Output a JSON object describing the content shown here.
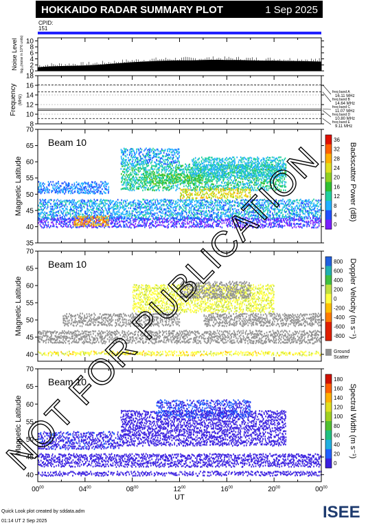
{
  "header": {
    "title": "HOKKAIDO RADAR SUMMARY PLOT",
    "date": "1 Sep 2025"
  },
  "cpid": {
    "label": "CPID:",
    "value": "151"
  },
  "watermark": "NOT FOR PUBLICATION",
  "footer": {
    "line1": "Quick Look plot created by sddata.adm",
    "line2": "01:14 UT  2 Sep 2025",
    "logo": "ISEE"
  },
  "colors": {
    "cpid_bar": "#2020ff",
    "velocity_pos": "#2020c0",
    "velocity_neg": "#e04000",
    "ground_scatter": "#909090",
    "width_main": "#3a20e0"
  },
  "chart_data": [
    {
      "id": "noise",
      "type": "area",
      "ylabel": "Noise Level",
      "ylabel_sub": "log₁₀(noise in 10^6 units)",
      "yticks": [
        "0",
        "2",
        "4",
        "6",
        "8",
        "10"
      ],
      "ylim": [
        0,
        11
      ],
      "xlim": [
        0,
        24
      ],
      "x": [
        0,
        1,
        2,
        3,
        4,
        5,
        6,
        7,
        8,
        9,
        10,
        11,
        12,
        13,
        14,
        15,
        16,
        17,
        18,
        19,
        20,
        21,
        22,
        23,
        24
      ],
      "values": [
        1.2,
        1.5,
        1.6,
        1.7,
        1.8,
        2.0,
        2.3,
        2.6,
        2.9,
        3.1,
        3.3,
        3.4,
        3.5,
        3.5,
        3.6,
        3.7,
        3.6,
        3.6,
        3.5,
        3.4,
        3.4,
        3.3,
        3.3,
        3.2,
        3.1
      ]
    },
    {
      "id": "frequency",
      "type": "line",
      "ylabel": "Frequency",
      "ylabel_sub": "(MHz)",
      "yticks": [
        "8",
        "10",
        "12",
        "14",
        "16",
        "18"
      ],
      "ylim": [
        8,
        18
      ],
      "xlim": [
        0,
        24
      ],
      "series": [
        {
          "name": "freq band A",
          "freq_label": "16.11 MHz",
          "value": 16.11
        },
        {
          "name": "freq band B",
          "freq_label": "14.64 MHz",
          "value": 14.64
        },
        {
          "name": "freq band C",
          "freq_label": "11.07 MHz",
          "value": 11.07
        },
        {
          "name": "freq band D",
          "freq_label": "10.80 MHz",
          "value": 10.8
        },
        {
          "name": "freq band E",
          "freq_label": "9.11 MHz",
          "value": 9.11
        }
      ]
    },
    {
      "id": "power",
      "type": "heatmap",
      "title": "Beam 10",
      "ylabel": "Magnetic Latitude",
      "ylim": [
        35,
        70
      ],
      "xlim": [
        0,
        24
      ],
      "yticks": [
        "35",
        "40",
        "45",
        "50",
        "55",
        "60",
        "65",
        "70"
      ],
      "colorbar_label": "Backscatter Power (dB)",
      "colorbar_ticks": [
        "0",
        "4",
        "8",
        "12",
        "16",
        "20",
        "24",
        "28",
        "32",
        "36"
      ],
      "colorbar_range": [
        0,
        40
      ],
      "bands": [
        {
          "x0": 0,
          "x1": 24,
          "lat0": 42.0,
          "lat1": 48.0,
          "value": 10
        },
        {
          "x0": 0,
          "x1": 24,
          "lat0": 39.5,
          "lat1": 42.5,
          "value": 4
        },
        {
          "x0": 3,
          "x1": 6,
          "lat0": 40.0,
          "lat1": 43.0,
          "value": 30
        },
        {
          "x0": 7,
          "x1": 21,
          "lat0": 51.0,
          "lat1": 59.0,
          "value": 14
        },
        {
          "x0": 12,
          "x1": 18,
          "lat0": 48.5,
          "lat1": 51.5,
          "value": 26
        },
        {
          "x0": 9,
          "x1": 14,
          "lat0": 53.0,
          "lat1": 56.0,
          "value": 18
        },
        {
          "x0": 0,
          "x1": 6,
          "lat0": 50.0,
          "lat1": 54.0,
          "value": 8
        },
        {
          "x0": 13,
          "x1": 21,
          "lat0": 55.0,
          "lat1": 61.0,
          "value": 12
        },
        {
          "x0": 7,
          "x1": 12,
          "lat0": 59.0,
          "lat1": 64.0,
          "value": 10
        }
      ]
    },
    {
      "id": "velocity",
      "type": "heatmap",
      "title": "Beam 10",
      "ylabel": "Magnetic Latitude",
      "ylim": [
        38,
        70
      ],
      "xlim": [
        0,
        24
      ],
      "yticks": [
        "40",
        "45",
        "50",
        "55",
        "60",
        "65",
        "70"
      ],
      "colorbar_label": "Doppler Velocity (m s⁻¹)",
      "colorbar_ticks": [
        "800",
        "600",
        "400",
        "200",
        "0",
        "-200",
        "-400",
        "-600",
        "-800"
      ],
      "colorbar_range": [
        -800,
        800
      ],
      "ground_scatter_label": "Ground Scatter",
      "bands": [
        {
          "x0": 0,
          "x1": 24,
          "lat0": 43.0,
          "lat1": 47.0,
          "value": "gs"
        },
        {
          "x0": 0,
          "x1": 24,
          "lat0": 39.5,
          "lat1": 41.0,
          "value": -100
        },
        {
          "x0": 2,
          "x1": 12,
          "lat0": 48.0,
          "lat1": 52.0,
          "value": "gs"
        },
        {
          "x0": 14,
          "x1": 24,
          "lat0": 48.0,
          "lat1": 51.5,
          "value": "gs"
        },
        {
          "x0": 8,
          "x1": 20,
          "lat0": 52.0,
          "lat1": 60.0,
          "value": -50
        },
        {
          "x0": 12,
          "x1": 18,
          "lat0": 56.0,
          "lat1": 61.0,
          "value": "gs"
        }
      ]
    },
    {
      "id": "width",
      "type": "heatmap",
      "title": "Beam 10",
      "ylabel": "Magnetic Latitude",
      "ylim": [
        38,
        70
      ],
      "xlim": [
        0,
        24
      ],
      "yticks": [
        "40",
        "45",
        "50",
        "55",
        "60",
        "65",
        "70"
      ],
      "colorbar_label": "Spectral Width (m s⁻¹)",
      "colorbar_ticks": [
        "0",
        "20",
        "40",
        "60",
        "80",
        "100",
        "120",
        "140",
        "160",
        "180"
      ],
      "colorbar_range": [
        0,
        200
      ],
      "bands": [
        {
          "x0": 0,
          "x1": 24,
          "lat0": 42.0,
          "lat1": 46.0,
          "value": 10
        },
        {
          "x0": 0,
          "x1": 24,
          "lat0": 39.5,
          "lat1": 41.0,
          "value": 10
        },
        {
          "x0": 0,
          "x1": 7,
          "lat0": 47.0,
          "lat1": 52.0,
          "value": 15
        },
        {
          "x0": 7,
          "x1": 21,
          "lat0": 48.0,
          "lat1": 58.0,
          "value": 12
        },
        {
          "x0": 10,
          "x1": 18,
          "lat0": 56.0,
          "lat1": 61.0,
          "value": 20
        }
      ]
    }
  ],
  "xaxis": {
    "label": "UT",
    "ticks": [
      {
        "main": "00",
        "sup": "00"
      },
      {
        "main": "04",
        "sup": "00"
      },
      {
        "main": "08",
        "sup": "00"
      },
      {
        "main": "12",
        "sup": "00"
      },
      {
        "main": "16",
        "sup": "00"
      },
      {
        "main": "20",
        "sup": "00"
      },
      {
        "main": "00",
        "sup": "00"
      }
    ]
  }
}
